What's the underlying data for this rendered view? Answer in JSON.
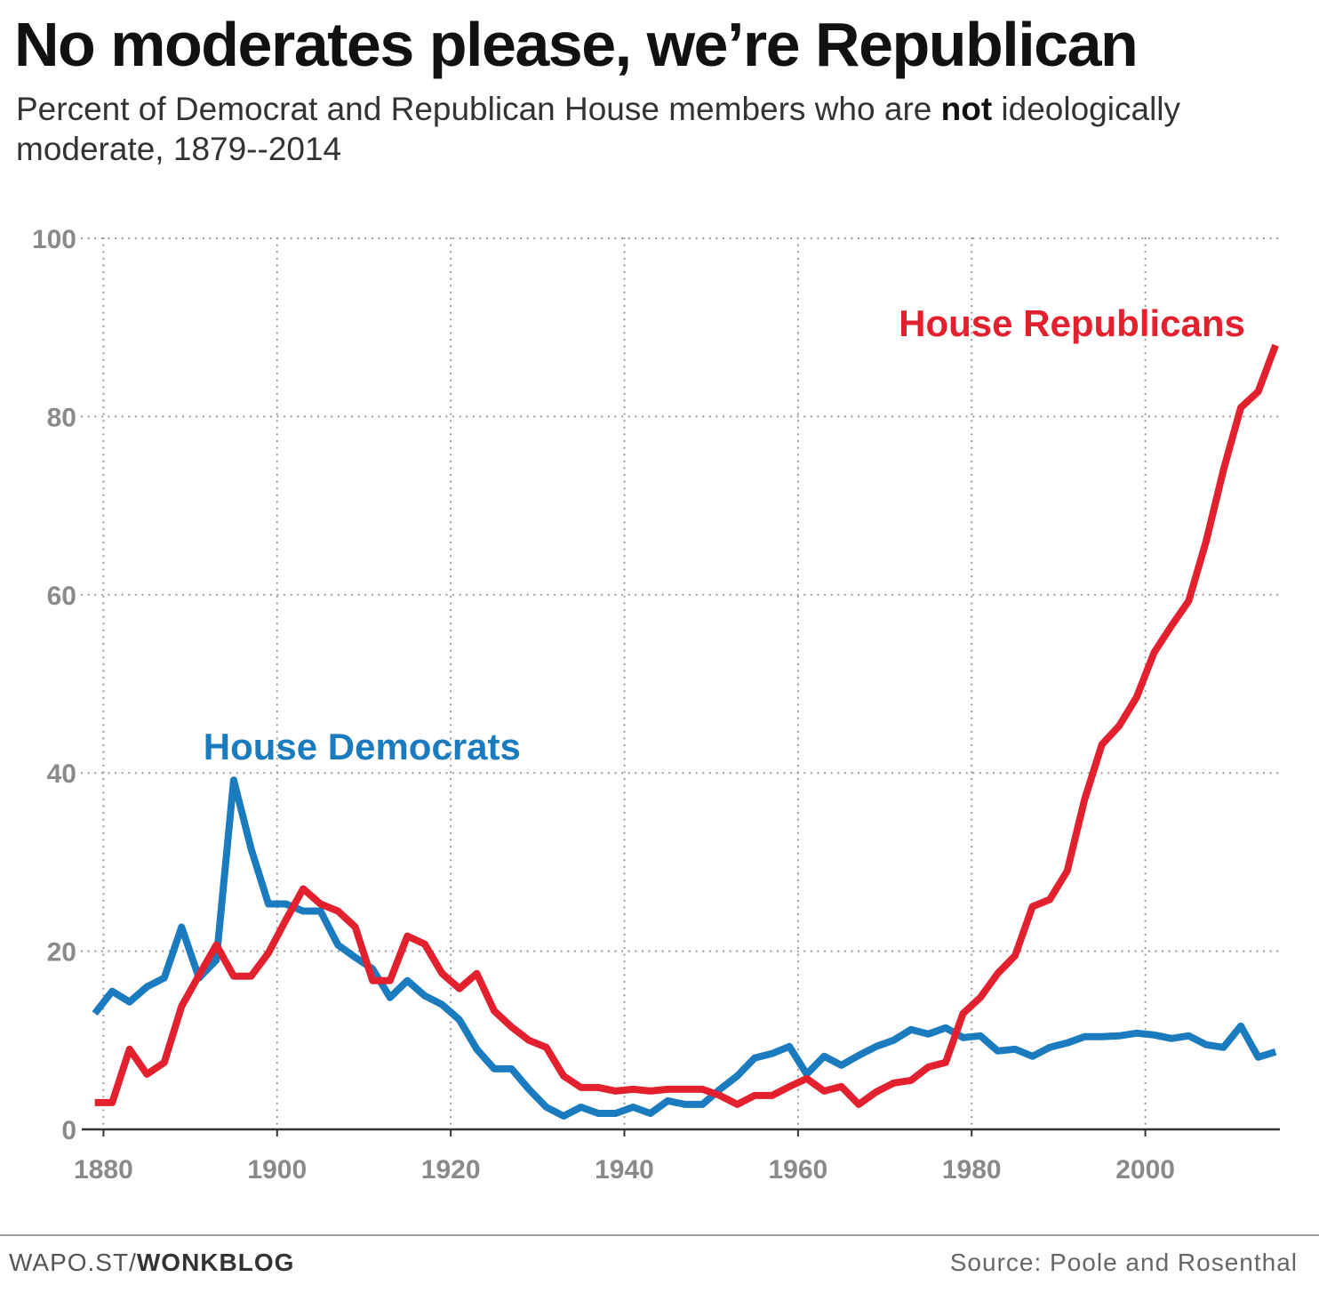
{
  "chart_data": {
    "type": "line",
    "title": "No moderates please, we’re Republican",
    "subtitle": {
      "before": "Percent of Democrat and Republican House members who are ",
      "emphasis": "not",
      "after": " ideologically moderate, 1879--2014"
    },
    "xlabel": "",
    "ylabel": "",
    "xlim": [
      1877.5,
      2015.5
    ],
    "ylim": [
      0,
      100
    ],
    "x_ticks": [
      1880,
      1900,
      1920,
      1940,
      1960,
      1980,
      2000
    ],
    "y_ticks": [
      0,
      20,
      40,
      60,
      80,
      100
    ],
    "grid": true,
    "series": [
      {
        "name": "House Democrats",
        "color": "#1b7bbf",
        "label_position": {
          "x": 1891.5,
          "y": 41.5
        },
        "points": [
          [
            1879,
            13
          ],
          [
            1881,
            15.5
          ],
          [
            1883,
            14.3
          ],
          [
            1885,
            16
          ],
          [
            1887,
            17
          ],
          [
            1889,
            22.7
          ],
          [
            1891,
            17
          ],
          [
            1893,
            19
          ],
          [
            1895,
            39.2
          ],
          [
            1897,
            31.5
          ],
          [
            1899,
            25.3
          ],
          [
            1901,
            25.3
          ],
          [
            1903,
            24.5
          ],
          [
            1905,
            24.5
          ],
          [
            1907,
            20.7
          ],
          [
            1909,
            19.3
          ],
          [
            1911,
            18
          ],
          [
            1913,
            14.8
          ],
          [
            1915,
            16.7
          ],
          [
            1917,
            15
          ],
          [
            1919,
            14
          ],
          [
            1921,
            12.3
          ],
          [
            1923,
            9
          ],
          [
            1925,
            6.8
          ],
          [
            1927,
            6.8
          ],
          [
            1929,
            4.5
          ],
          [
            1931,
            2.5
          ],
          [
            1933,
            1.5
          ],
          [
            1935,
            2.5
          ],
          [
            1937,
            1.8
          ],
          [
            1939,
            1.8
          ],
          [
            1941,
            2.5
          ],
          [
            1943,
            1.8
          ],
          [
            1945,
            3.2
          ],
          [
            1947,
            2.8
          ],
          [
            1949,
            2.8
          ],
          [
            1951,
            4.5
          ],
          [
            1953,
            6
          ],
          [
            1955,
            8
          ],
          [
            1957,
            8.5
          ],
          [
            1959,
            9.3
          ],
          [
            1961,
            6.2
          ],
          [
            1963,
            8.2
          ],
          [
            1965,
            7.2
          ],
          [
            1967,
            8.3
          ],
          [
            1969,
            9.3
          ],
          [
            1971,
            10
          ],
          [
            1973,
            11.2
          ],
          [
            1975,
            10.7
          ],
          [
            1977,
            11.4
          ],
          [
            1979,
            10.3
          ],
          [
            1981,
            10.5
          ],
          [
            1983,
            8.8
          ],
          [
            1985,
            9
          ],
          [
            1987,
            8.2
          ],
          [
            1989,
            9.2
          ],
          [
            1991,
            9.7
          ],
          [
            1993,
            10.4
          ],
          [
            1995,
            10.4
          ],
          [
            1997,
            10.5
          ],
          [
            1999,
            10.8
          ],
          [
            2001,
            10.6
          ],
          [
            2003,
            10.2
          ],
          [
            2005,
            10.5
          ],
          [
            2007,
            9.5
          ],
          [
            2009,
            9.2
          ],
          [
            2011,
            11.6
          ],
          [
            2013,
            8.1
          ],
          [
            2015,
            8.7
          ]
        ]
      },
      {
        "name": "House Republicans",
        "color": "#e3202d",
        "label_position": {
          "x": 2011.5,
          "y": 89
        },
        "points": [
          [
            1879,
            3
          ],
          [
            1881,
            3
          ],
          [
            1883,
            9
          ],
          [
            1885,
            6.2
          ],
          [
            1887,
            7.5
          ],
          [
            1889,
            13.8
          ],
          [
            1891,
            17.3
          ],
          [
            1893,
            20.7
          ],
          [
            1895,
            17.2
          ],
          [
            1897,
            17.2
          ],
          [
            1899,
            19.8
          ],
          [
            1901,
            23.5
          ],
          [
            1903,
            27
          ],
          [
            1905,
            25.3
          ],
          [
            1907,
            24.5
          ],
          [
            1909,
            22.7
          ],
          [
            1911,
            16.7
          ],
          [
            1913,
            16.7
          ],
          [
            1915,
            21.7
          ],
          [
            1917,
            20.8
          ],
          [
            1919,
            17.5
          ],
          [
            1921,
            15.8
          ],
          [
            1923,
            17.5
          ],
          [
            1925,
            13.3
          ],
          [
            1927,
            11.5
          ],
          [
            1929,
            10
          ],
          [
            1931,
            9.2
          ],
          [
            1933,
            6
          ],
          [
            1935,
            4.7
          ],
          [
            1937,
            4.7
          ],
          [
            1939,
            4.3
          ],
          [
            1941,
            4.5
          ],
          [
            1943,
            4.3
          ],
          [
            1945,
            4.5
          ],
          [
            1947,
            4.5
          ],
          [
            1949,
            4.5
          ],
          [
            1951,
            3.8
          ],
          [
            1953,
            2.8
          ],
          [
            1955,
            3.8
          ],
          [
            1957,
            3.8
          ],
          [
            1959,
            4.8
          ],
          [
            1961,
            5.7
          ],
          [
            1963,
            4.3
          ],
          [
            1965,
            4.8
          ],
          [
            1967,
            2.8
          ],
          [
            1969,
            4.2
          ],
          [
            1971,
            5.2
          ],
          [
            1973,
            5.5
          ],
          [
            1975,
            7
          ],
          [
            1977,
            7.5
          ],
          [
            1979,
            13
          ],
          [
            1981,
            14.8
          ],
          [
            1983,
            17.5
          ],
          [
            1985,
            19.5
          ],
          [
            1987,
            25
          ],
          [
            1989,
            25.8
          ],
          [
            1991,
            29
          ],
          [
            1993,
            37
          ],
          [
            1995,
            43.2
          ],
          [
            1997,
            45.3
          ],
          [
            1999,
            48.5
          ],
          [
            2001,
            53.5
          ],
          [
            2003,
            56.5
          ],
          [
            2005,
            59.3
          ],
          [
            2007,
            66
          ],
          [
            2009,
            74
          ],
          [
            2011,
            81
          ],
          [
            2013,
            82.8
          ],
          [
            2015,
            88
          ]
        ]
      }
    ]
  },
  "footer": {
    "brand_prefix": "WAPO.ST/",
    "brand_name": "WONKBLOG",
    "source": "Source: Poole and Rosenthal"
  }
}
